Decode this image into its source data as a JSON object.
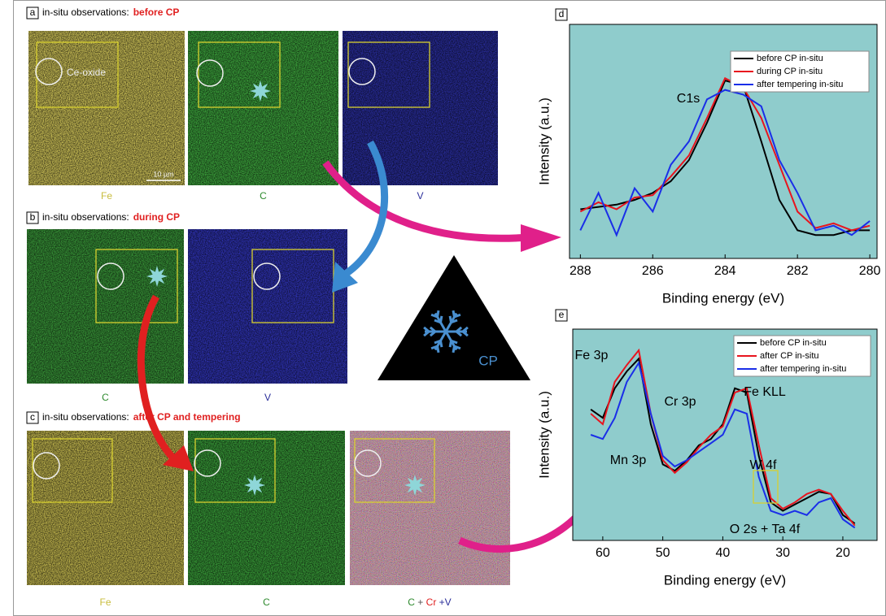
{
  "panels": [
    {
      "label": "a",
      "heading": "in-situ observations:",
      "highlight": "before CP",
      "images": [
        "Fe",
        "C",
        "V"
      ],
      "annotations": [
        "Ce-oxide",
        "10 µm"
      ]
    },
    {
      "label": "b",
      "heading": "in-situ observations:",
      "highlight": "during CP",
      "images": [
        "C",
        "V"
      ]
    },
    {
      "label": "c",
      "heading": "in-situ observations:",
      "highlight": "after CP and tempering",
      "images": [
        "Fe",
        "C"
      ],
      "combined_label": [
        "C",
        " + ",
        "Cr",
        " +V"
      ]
    }
  ],
  "center_label": "CP",
  "chart_data": [
    {
      "type": "line",
      "label": "d",
      "xlabel": "Binding energy (eV)",
      "ylabel": "Intensity (a.u.)",
      "x": [
        288,
        287.5,
        287,
        286.5,
        286,
        285.5,
        285,
        284.5,
        284,
        283.5,
        283,
        282.5,
        282,
        281.5,
        281,
        280.5,
        280
      ],
      "xlim": [
        288.3,
        279.8
      ],
      "xticks": [
        288,
        286,
        284,
        282,
        280
      ],
      "ylim": [
        0,
        1
      ],
      "background": "#8fcccc",
      "series": [
        {
          "name": "before CP in-situ",
          "color": "#000000",
          "values": [
            0.21,
            0.22,
            0.23,
            0.25,
            0.28,
            0.33,
            0.42,
            0.58,
            0.76,
            0.74,
            0.5,
            0.25,
            0.12,
            0.1,
            0.1,
            0.12,
            0.12
          ]
        },
        {
          "name": "during CP in-situ",
          "color": "#e8141e",
          "values": [
            0.2,
            0.24,
            0.21,
            0.26,
            0.27,
            0.35,
            0.44,
            0.6,
            0.77,
            0.73,
            0.6,
            0.4,
            0.2,
            0.13,
            0.15,
            0.12,
            0.14
          ]
        },
        {
          "name": "after tempering in-situ",
          "color": "#1a2ee8",
          "values": [
            0.12,
            0.28,
            0.1,
            0.3,
            0.2,
            0.4,
            0.5,
            0.68,
            0.72,
            0.7,
            0.65,
            0.42,
            0.28,
            0.12,
            0.14,
            0.1,
            0.16
          ]
        }
      ],
      "annotations": [
        "C1s"
      ]
    },
    {
      "type": "line",
      "label": "e",
      "xlabel": "Binding energy (eV)",
      "ylabel": "Intensity (a.u.)",
      "x": [
        62,
        60,
        58,
        56,
        54,
        52,
        50,
        48,
        46,
        44,
        42,
        40,
        38,
        36,
        34,
        32,
        30,
        28,
        26,
        24,
        22,
        20,
        18
      ],
      "xlim": [
        65,
        14.3
      ],
      "xticks": [
        60,
        50,
        40,
        30,
        20
      ],
      "ylim": [
        0,
        1
      ],
      "background": "#8fcccc",
      "series": [
        {
          "name": "before CP in-situ",
          "color": "#000000",
          "values": [
            0.62,
            0.58,
            0.72,
            0.8,
            0.86,
            0.55,
            0.36,
            0.33,
            0.38,
            0.45,
            0.48,
            0.55,
            0.72,
            0.7,
            0.4,
            0.18,
            0.14,
            0.17,
            0.2,
            0.23,
            0.22,
            0.12,
            0.08
          ]
        },
        {
          "name": "after CP in-situ",
          "color": "#e8141e",
          "values": [
            0.6,
            0.55,
            0.75,
            0.83,
            0.9,
            0.6,
            0.38,
            0.32,
            0.37,
            0.44,
            0.5,
            0.54,
            0.7,
            0.72,
            0.45,
            0.2,
            0.15,
            0.18,
            0.22,
            0.24,
            0.22,
            0.14,
            0.07
          ]
        },
        {
          "name": "after tempering in-situ",
          "color": "#1a2ee8",
          "values": [
            0.5,
            0.48,
            0.58,
            0.75,
            0.84,
            0.6,
            0.4,
            0.35,
            0.38,
            0.42,
            0.46,
            0.5,
            0.62,
            0.6,
            0.3,
            0.14,
            0.12,
            0.14,
            0.12,
            0.18,
            0.2,
            0.1,
            0.06
          ]
        }
      ],
      "annotations": [
        "Fe 3p",
        "Cr 3p",
        "Fe KLL",
        "Mn 3p",
        "W 4f",
        "O 2s + Ta 4f"
      ]
    }
  ]
}
